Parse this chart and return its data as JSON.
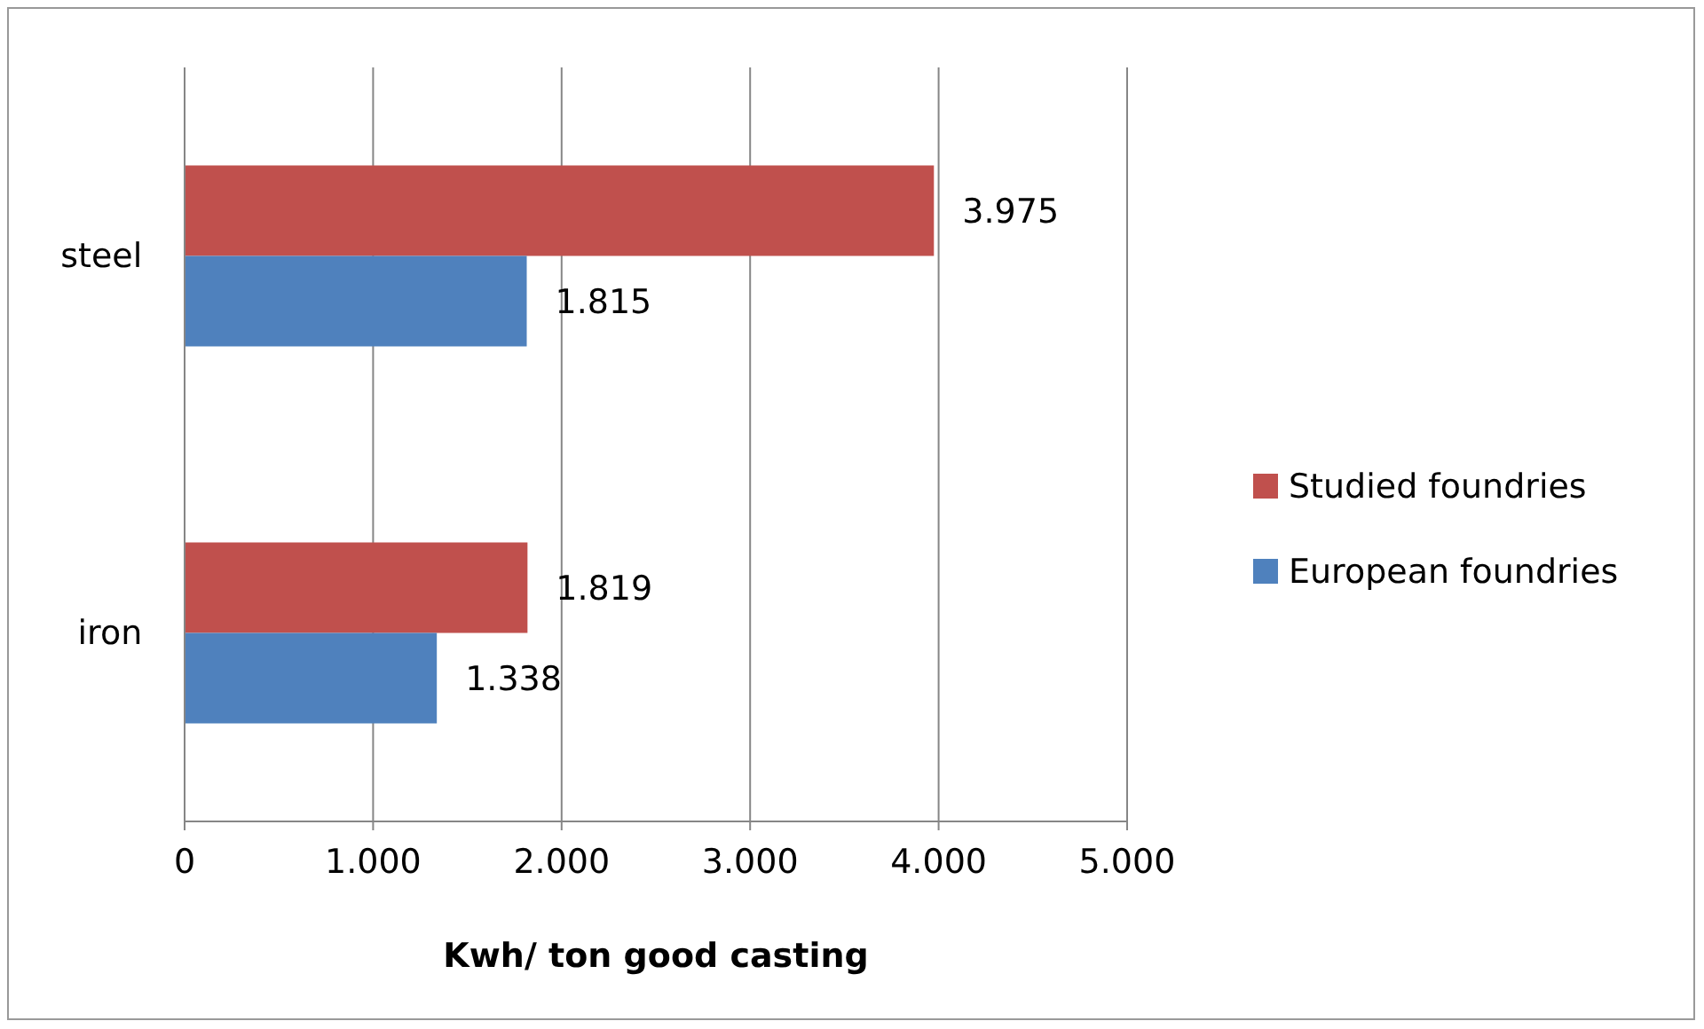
{
  "chart_data": {
    "type": "bar",
    "orientation": "horizontal",
    "xlabel": "Kwh/ ton good casting",
    "categories": [
      "steel",
      "iron"
    ],
    "series": [
      {
        "name": "Studied foundries",
        "color": "#c0504d",
        "values": [
          3975,
          1819
        ],
        "value_labels": [
          "3.975",
          "1.819"
        ]
      },
      {
        "name": "European foundries",
        "color": "#4f81bd",
        "values": [
          1815,
          1338
        ],
        "value_labels": [
          "1.815",
          "1.338"
        ]
      }
    ],
    "xlim": [
      0,
      5000
    ],
    "xticks": [
      0,
      {
        "value": 1000,
        "label": "1.000"
      },
      {
        "value": 2000,
        "label": "2.000"
      },
      {
        "value": 3000,
        "label": "3.000"
      },
      {
        "value": 4000,
        "label": "4.000"
      },
      {
        "value": 5000,
        "label": "5.000"
      }
    ],
    "grid": "x",
    "legend": "right"
  }
}
